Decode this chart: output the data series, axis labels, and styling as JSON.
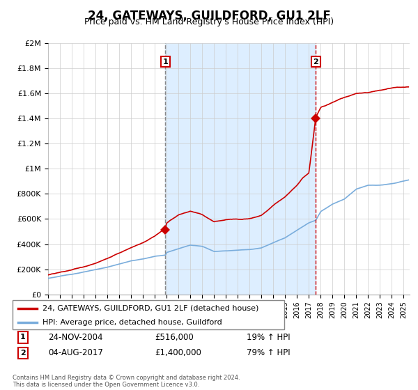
{
  "title": "24, GATEWAYS, GUILDFORD, GU1 2LF",
  "subtitle": "Price paid vs. HM Land Registry's House Price Index (HPI)",
  "title_fontsize": 12,
  "subtitle_fontsize": 9,
  "ylabel_ticks": [
    "£0",
    "£200K",
    "£400K",
    "£600K",
    "£800K",
    "£1M",
    "£1.2M",
    "£1.4M",
    "£1.6M",
    "£1.8M",
    "£2M"
  ],
  "ytick_values": [
    0,
    200000,
    400000,
    600000,
    800000,
    1000000,
    1200000,
    1400000,
    1600000,
    1800000,
    2000000
  ],
  "ylim": [
    0,
    2000000
  ],
  "xlim_start": 1995.0,
  "xlim_end": 2025.5,
  "xtick_years": [
    1995,
    1996,
    1997,
    1998,
    1999,
    2000,
    2001,
    2002,
    2003,
    2004,
    2005,
    2006,
    2007,
    2008,
    2009,
    2010,
    2011,
    2012,
    2013,
    2014,
    2015,
    2016,
    2017,
    2018,
    2019,
    2020,
    2021,
    2022,
    2023,
    2024,
    2025
  ],
  "transaction1_x": 2004.9,
  "transaction1_y": 516000,
  "transaction2_x": 2017.58,
  "transaction2_y": 1400000,
  "line_color_property": "#cc0000",
  "line_color_hpi": "#7aaddc",
  "line_width": 1.2,
  "background_color": "#ffffff",
  "plot_bg_color": "#ffffff",
  "shading_color": "#ddeeff",
  "grid_color": "#cccccc",
  "legend_label_property": "24, GATEWAYS, GUILDFORD, GU1 2LF (detached house)",
  "legend_label_hpi": "HPI: Average price, detached house, Guildford",
  "transaction1_date": "24-NOV-2004",
  "transaction1_price": "£516,000",
  "transaction1_hpi": "19% ↑ HPI",
  "transaction2_date": "04-AUG-2017",
  "transaction2_price": "£1,400,000",
  "transaction2_hpi": "79% ↑ HPI",
  "footer_text": "Contains HM Land Registry data © Crown copyright and database right 2024.\nThis data is licensed under the Open Government Licence v3.0."
}
